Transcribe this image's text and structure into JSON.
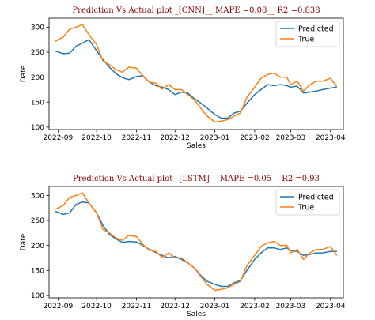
{
  "chart_data": [
    {
      "type": "line",
      "title": "Prediction Vs Actual plot _[CNN]__ MAPE =0.08__ R2 =0.838",
      "xlabel": "Sales",
      "ylabel": "Date",
      "x_ticks": [
        "2022-09",
        "2022-10",
        "2022-11",
        "2022-12",
        "2023-01",
        "2023-02",
        "2023-03",
        "2023-04"
      ],
      "y_ticks": [
        100,
        150,
        200,
        250,
        300
      ],
      "ylim": [
        95,
        318
      ],
      "legend_position": "top-right",
      "x": [
        "2022-08-30",
        "2022-09-05",
        "2022-09-10",
        "2022-09-15",
        "2022-09-20",
        "2022-09-25",
        "2022-10-01",
        "2022-10-06",
        "2022-10-11",
        "2022-10-16",
        "2022-10-21",
        "2022-10-26",
        "2022-11-01",
        "2022-11-06",
        "2022-11-11",
        "2022-11-16",
        "2022-11-21",
        "2022-11-26",
        "2022-12-01",
        "2022-12-06",
        "2022-12-11",
        "2022-12-16",
        "2022-12-21",
        "2022-12-26",
        "2023-01-01",
        "2023-01-06",
        "2023-01-11",
        "2023-01-16",
        "2023-01-21",
        "2023-01-26",
        "2023-02-01",
        "2023-02-06",
        "2023-02-11",
        "2023-02-16",
        "2023-02-21",
        "2023-02-26",
        "2023-03-01",
        "2023-03-06",
        "2023-03-11",
        "2023-03-16",
        "2023-03-21",
        "2023-03-26",
        "2023-04-01",
        "2023-04-06"
      ],
      "series": [
        {
          "name": "Predicted",
          "color": "#1f77b4",
          "values": [
            252,
            247,
            248,
            262,
            268,
            275,
            253,
            235,
            220,
            207,
            199,
            195,
            201,
            203,
            190,
            183,
            180,
            175,
            165,
            170,
            168,
            157,
            148,
            138,
            125,
            118,
            118,
            128,
            132,
            148,
            165,
            175,
            185,
            183,
            185,
            183,
            180,
            182,
            168,
            170,
            172,
            175,
            178,
            180
          ]
        },
        {
          "name": "True",
          "color": "#ff7f0e",
          "values": [
            272,
            280,
            296,
            300,
            305,
            285,
            265,
            232,
            225,
            215,
            210,
            220,
            218,
            202,
            190,
            188,
            176,
            185,
            175,
            175,
            165,
            155,
            138,
            122,
            110,
            112,
            115,
            122,
            128,
            160,
            180,
            198,
            205,
            208,
            200,
            200,
            185,
            192,
            172,
            185,
            192,
            192,
            198,
            180
          ]
        }
      ]
    },
    {
      "type": "line",
      "title": "Prediction Vs Actual plot _[LSTM]__ MAPE =0.05__ R2 =0.93",
      "xlabel": "Sales",
      "ylabel": "Date",
      "x_ticks": [
        "2022-09",
        "2022-10",
        "2022-11",
        "2022-12",
        "2023-01",
        "2023-02",
        "2023-03",
        "2023-04"
      ],
      "y_ticks": [
        100,
        150,
        200,
        250,
        300
      ],
      "ylim": [
        95,
        318
      ],
      "legend_position": "top-right",
      "x": [
        "2022-08-30",
        "2022-09-05",
        "2022-09-10",
        "2022-09-15",
        "2022-09-20",
        "2022-09-25",
        "2022-10-01",
        "2022-10-06",
        "2022-10-11",
        "2022-10-16",
        "2022-10-21",
        "2022-10-26",
        "2022-11-01",
        "2022-11-06",
        "2022-11-11",
        "2022-11-16",
        "2022-11-21",
        "2022-11-26",
        "2022-12-01",
        "2022-12-06",
        "2022-12-11",
        "2022-12-16",
        "2022-12-21",
        "2022-12-26",
        "2023-01-01",
        "2023-01-06",
        "2023-01-11",
        "2023-01-16",
        "2023-01-21",
        "2023-01-26",
        "2023-02-01",
        "2023-02-06",
        "2023-02-11",
        "2023-02-16",
        "2023-02-21",
        "2023-02-26",
        "2023-03-01",
        "2023-03-06",
        "2023-03-11",
        "2023-03-16",
        "2023-03-21",
        "2023-03-26",
        "2023-04-01",
        "2023-04-06"
      ],
      "series": [
        {
          "name": "Predicted",
          "color": "#1f77b4",
          "values": [
            268,
            262,
            265,
            282,
            287,
            285,
            265,
            240,
            222,
            213,
            206,
            208,
            207,
            200,
            192,
            186,
            180,
            175,
            178,
            172,
            165,
            155,
            140,
            128,
            122,
            118,
            118,
            125,
            130,
            150,
            172,
            185,
            195,
            195,
            192,
            195,
            190,
            188,
            180,
            182,
            185,
            185,
            188,
            188
          ]
        },
        {
          "name": "True",
          "color": "#ff7f0e",
          "values": [
            272,
            280,
            296,
            300,
            305,
            285,
            265,
            232,
            225,
            215,
            210,
            220,
            218,
            202,
            190,
            188,
            176,
            185,
            175,
            175,
            165,
            155,
            138,
            122,
            110,
            112,
            115,
            122,
            128,
            160,
            180,
            198,
            205,
            208,
            200,
            200,
            185,
            192,
            172,
            185,
            192,
            192,
            198,
            180
          ]
        }
      ]
    }
  ]
}
